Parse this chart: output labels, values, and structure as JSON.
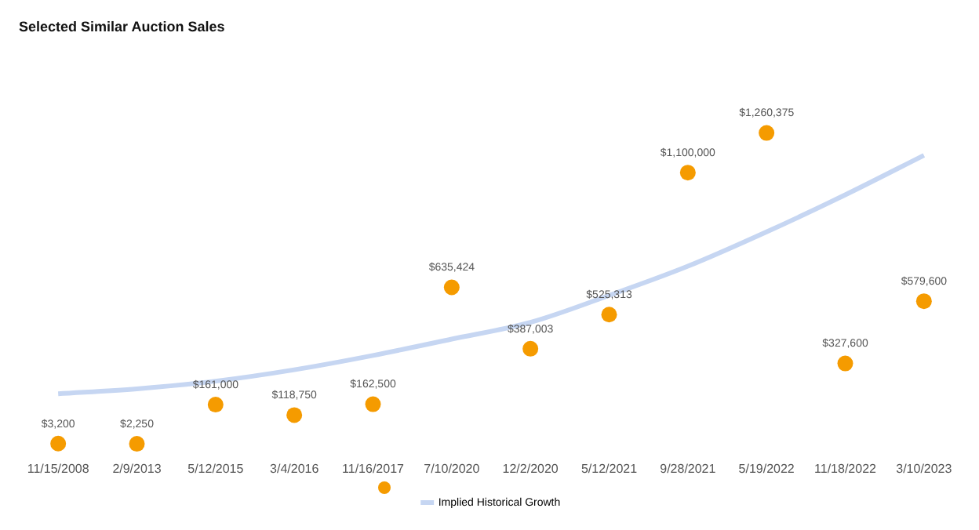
{
  "chart_data": {
    "type": "scatter",
    "title": "Selected Similar Auction Sales",
    "categories": [
      "11/15/2008",
      "2/9/2013",
      "5/12/2015",
      "3/4/2016",
      "11/16/2017",
      "7/10/2020",
      "12/2/2020",
      "5/12/2021",
      "9/28/2021",
      "5/19/2022",
      "11/18/2022",
      "3/10/2023"
    ],
    "series": [
      {
        "color": "#f59b00",
        "marker": "circle",
        "values": [
          3200,
          2250,
          161000,
          118750,
          162500,
          635424,
          387003,
          525313,
          1100000,
          1260375,
          327600,
          579600
        ],
        "value_labels": [
          "$3,200",
          "$2,250",
          "$161,000",
          "$118,750",
          "$162,500",
          "$635,424",
          "$387,003",
          "$525,313",
          "$1,100,000",
          "$1,260,375",
          "$327,600",
          "$579,600"
        ]
      },
      {
        "type": "line",
        "name": "Implied Historical Growth",
        "color": "#c6d6f2",
        "marker": "none",
        "line_style": "solid",
        "values": [
          205000,
          225000,
          256000,
          302000,
          360000,
          426000,
          494000,
          603000,
          721000,
          860000,
          1010000,
          1170000
        ]
      }
    ],
    "tick_labels": "x",
    "grid": false,
    "legend": "bottom"
  }
}
